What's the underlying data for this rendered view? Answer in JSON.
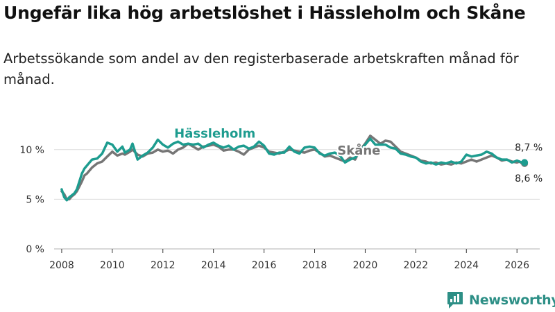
{
  "header": {
    "title": "Ungefär lika hög arbetslöshet i Hässleholm och Skåne",
    "subtitle": "Arbetssökande som andel av den registerbaserade arbetskraften månad för månad."
  },
  "brand": {
    "name": "Newsworthy",
    "color": "#2d8f86"
  },
  "chart_data": {
    "type": "line",
    "title": "Ungefär lika hög arbetslöshet i Hässleholm och Skåne",
    "xlabel": "",
    "ylabel": "",
    "xlim": [
      2007.7,
      2026.9
    ],
    "ylim": [
      0,
      12.5
    ],
    "y_ticks": [
      0,
      5,
      10
    ],
    "y_tick_labels": [
      "0 %",
      "5 %",
      "10 %"
    ],
    "x_ticks": [
      2008,
      2010,
      2012,
      2014,
      2016,
      2018,
      2020,
      2022,
      2024,
      2026
    ],
    "x_tick_labels": [
      "2008",
      "2010",
      "2012",
      "2014",
      "2016",
      "2018",
      "2020",
      "2022",
      "2024",
      "2026"
    ],
    "grid": true,
    "series": [
      {
        "name": "Skåne",
        "color": "#767676",
        "end_label": "8,6 %",
        "x": [
          2008.0,
          2008.1,
          2008.2,
          2008.3,
          2008.4,
          2008.5,
          2008.6,
          2008.8,
          2008.9,
          2009.0,
          2009.2,
          2009.4,
          2009.6,
          2009.8,
          2010.0,
          2010.2,
          2010.4,
          2010.5,
          2010.7,
          2010.8,
          2011.0,
          2011.2,
          2011.4,
          2011.6,
          2011.8,
          2012.0,
          2012.2,
          2012.4,
          2012.6,
          2012.8,
          2013.0,
          2013.2,
          2013.4,
          2013.6,
          2013.8,
          2014.0,
          2014.2,
          2014.4,
          2014.6,
          2014.8,
          2015.0,
          2015.2,
          2015.4,
          2015.6,
          2015.8,
          2016.0,
          2016.2,
          2016.4,
          2016.6,
          2016.8,
          2017.0,
          2017.2,
          2017.4,
          2017.6,
          2017.8,
          2018.0,
          2018.2,
          2018.4,
          2018.6,
          2018.8,
          2019.0,
          2019.2,
          2019.4,
          2019.6,
          2019.8,
          2020.0,
          2020.2,
          2020.4,
          2020.6,
          2020.8,
          2021.0,
          2021.2,
          2021.4,
          2021.6,
          2021.8,
          2022.0,
          2022.2,
          2022.4,
          2022.6,
          2022.8,
          2023.0,
          2023.2,
          2023.4,
          2023.6,
          2023.8,
          2024.0,
          2024.2,
          2024.4,
          2024.6,
          2024.8,
          2025.0,
          2025.2,
          2025.4,
          2025.6,
          2025.8,
          2026.0,
          2026.1,
          2026.2,
          2026.3
        ],
        "values": [
          5.8,
          5.5,
          5.0,
          5.0,
          5.3,
          5.5,
          5.8,
          6.8,
          7.4,
          7.6,
          8.2,
          8.6,
          8.8,
          9.3,
          9.8,
          9.4,
          9.6,
          9.5,
          9.8,
          10.0,
          9.5,
          9.3,
          9.6,
          9.7,
          10.0,
          9.8,
          9.9,
          9.6,
          10.0,
          10.2,
          10.6,
          10.3,
          10.0,
          10.3,
          10.4,
          10.5,
          10.3,
          9.9,
          10.0,
          10.0,
          9.8,
          9.5,
          10.0,
          10.2,
          10.4,
          10.2,
          9.8,
          9.7,
          9.6,
          9.8,
          10.0,
          9.9,
          9.8,
          9.7,
          9.9,
          10.0,
          9.7,
          9.3,
          9.4,
          9.2,
          9.0,
          8.8,
          9.2,
          9.0,
          10.0,
          10.6,
          11.4,
          11.0,
          10.6,
          10.9,
          10.8,
          10.3,
          9.8,
          9.6,
          9.4,
          9.2,
          8.9,
          8.8,
          8.6,
          8.7,
          8.5,
          8.6,
          8.5,
          8.7,
          8.6,
          8.8,
          9.0,
          8.8,
          9.0,
          9.2,
          9.4,
          9.2,
          8.9,
          9.0,
          8.8,
          8.7,
          8.8,
          8.6,
          8.6
        ]
      },
      {
        "name": "Hässleholm",
        "color": "#1d9c8f",
        "end_label": "8,7 %",
        "x": [
          2008.0,
          2008.1,
          2008.2,
          2008.3,
          2008.4,
          2008.5,
          2008.6,
          2008.8,
          2008.9,
          2009.0,
          2009.2,
          2009.4,
          2009.6,
          2009.8,
          2010.0,
          2010.2,
          2010.4,
          2010.5,
          2010.7,
          2010.8,
          2011.0,
          2011.2,
          2011.4,
          2011.6,
          2011.8,
          2012.0,
          2012.2,
          2012.4,
          2012.6,
          2012.8,
          2013.0,
          2013.2,
          2013.4,
          2013.6,
          2013.8,
          2014.0,
          2014.2,
          2014.4,
          2014.6,
          2014.8,
          2015.0,
          2015.2,
          2015.4,
          2015.6,
          2015.8,
          2016.0,
          2016.2,
          2016.4,
          2016.6,
          2016.8,
          2017.0,
          2017.2,
          2017.4,
          2017.6,
          2017.8,
          2018.0,
          2018.2,
          2018.4,
          2018.6,
          2018.8,
          2019.0,
          2019.2,
          2019.4,
          2019.6,
          2019.8,
          2020.0,
          2020.2,
          2020.4,
          2020.6,
          2020.8,
          2021.0,
          2021.2,
          2021.4,
          2021.6,
          2021.8,
          2022.0,
          2022.2,
          2022.4,
          2022.6,
          2022.8,
          2023.0,
          2023.2,
          2023.4,
          2023.6,
          2023.8,
          2024.0,
          2024.2,
          2024.4,
          2024.6,
          2024.8,
          2025.0,
          2025.2,
          2025.4,
          2025.6,
          2025.8,
          2026.0,
          2026.1,
          2026.2,
          2026.3
        ],
        "values": [
          6.0,
          5.2,
          4.9,
          5.2,
          5.4,
          5.6,
          6.0,
          7.6,
          8.1,
          8.4,
          9.0,
          9.1,
          9.6,
          10.7,
          10.5,
          9.8,
          10.3,
          9.7,
          10.0,
          10.6,
          9.0,
          9.4,
          9.7,
          10.2,
          11.0,
          10.5,
          10.2,
          10.6,
          10.8,
          10.5,
          10.6,
          10.5,
          10.6,
          10.2,
          10.5,
          10.7,
          10.4,
          10.2,
          10.4,
          10.0,
          10.3,
          10.4,
          10.1,
          10.3,
          10.8,
          10.4,
          9.6,
          9.5,
          9.7,
          9.7,
          10.3,
          9.8,
          9.6,
          10.2,
          10.3,
          10.2,
          9.6,
          9.4,
          9.6,
          9.7,
          9.4,
          8.7,
          9.0,
          9.2,
          9.8,
          10.5,
          11.1,
          10.5,
          10.5,
          10.5,
          10.2,
          10.1,
          9.6,
          9.5,
          9.3,
          9.2,
          8.8,
          8.6,
          8.7,
          8.5,
          8.7,
          8.6,
          8.8,
          8.6,
          8.8,
          9.5,
          9.3,
          9.4,
          9.5,
          9.8,
          9.6,
          9.2,
          9.0,
          9.0,
          8.7,
          8.9,
          8.8,
          8.7,
          8.7
        ]
      }
    ],
    "annotations": [
      {
        "text": "Hässleholm",
        "series": "Hässleholm"
      },
      {
        "text": "Skåne",
        "series": "Skåne"
      }
    ]
  }
}
